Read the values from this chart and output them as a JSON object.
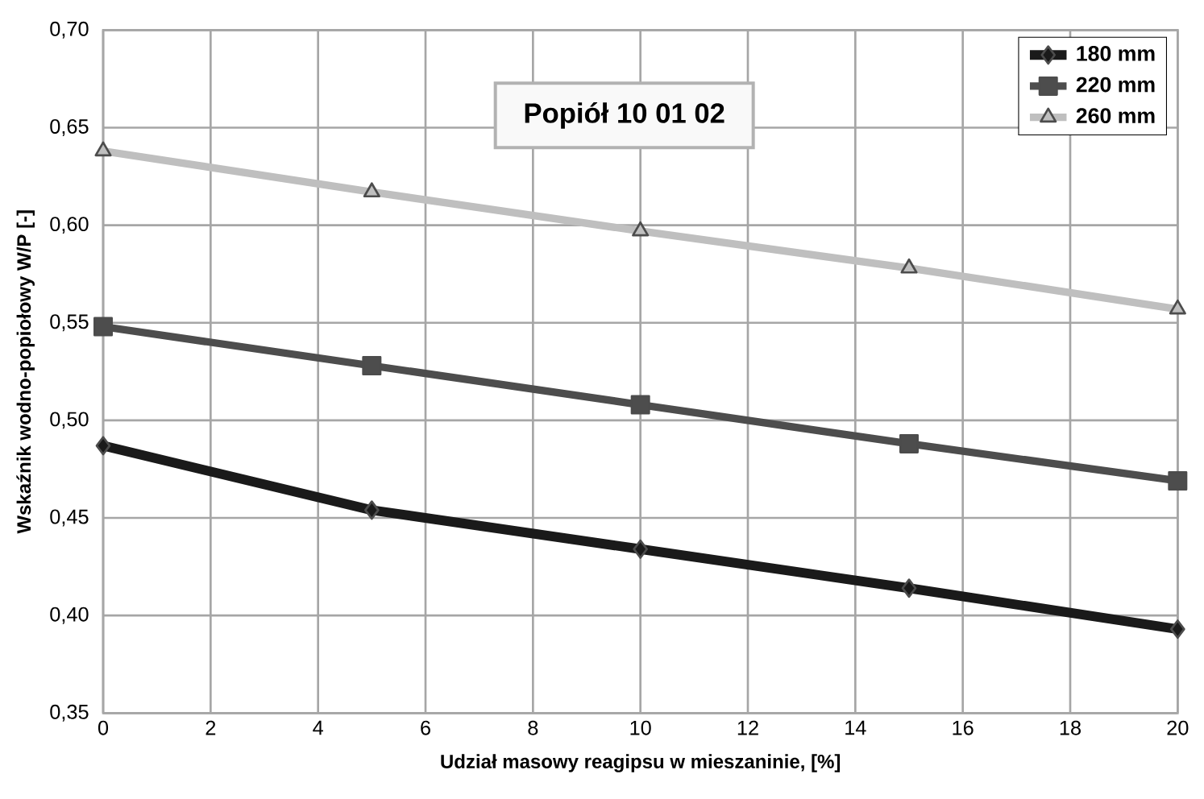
{
  "chart_data": {
    "type": "line",
    "title": "Popiół 10 01 02",
    "xlabel": "Udział masowy reagipsu w mieszaninie,   [%]",
    "ylabel": "Wskaźnik wodno-popiołowy W/P [-]",
    "x": [
      0,
      5,
      10,
      15,
      20
    ],
    "series": [
      {
        "name": "180 mm",
        "color": "#1a1a1a",
        "marker": "diamond",
        "values": [
          0.487,
          0.454,
          0.434,
          0.414,
          0.393
        ]
      },
      {
        "name": "220 mm",
        "color": "#4d4d4d",
        "marker": "square",
        "values": [
          0.548,
          0.528,
          0.508,
          0.488,
          0.469
        ]
      },
      {
        "name": "260 mm",
        "color": "#bfbfbf",
        "marker": "triangle",
        "values": [
          0.638,
          0.617,
          0.597,
          0.578,
          0.557
        ]
      }
    ],
    "xlim": [
      0,
      20
    ],
    "xticks": [
      0,
      2,
      4,
      6,
      8,
      10,
      12,
      14,
      16,
      18,
      20
    ],
    "ylim": [
      0.35,
      0.7
    ],
    "yticks": [
      {
        "value": 0.35,
        "label": "0,35"
      },
      {
        "value": 0.4,
        "label": "0,40"
      },
      {
        "value": 0.45,
        "label": "0,45"
      },
      {
        "value": 0.5,
        "label": "0,50"
      },
      {
        "value": 0.55,
        "label": "0,55"
      },
      {
        "value": 0.6,
        "label": "0,60"
      },
      {
        "value": 0.65,
        "label": "0,65"
      },
      {
        "value": 0.7,
        "label": "0,70"
      }
    ],
    "grid": true,
    "legend": "top right",
    "line_style": "solid"
  }
}
